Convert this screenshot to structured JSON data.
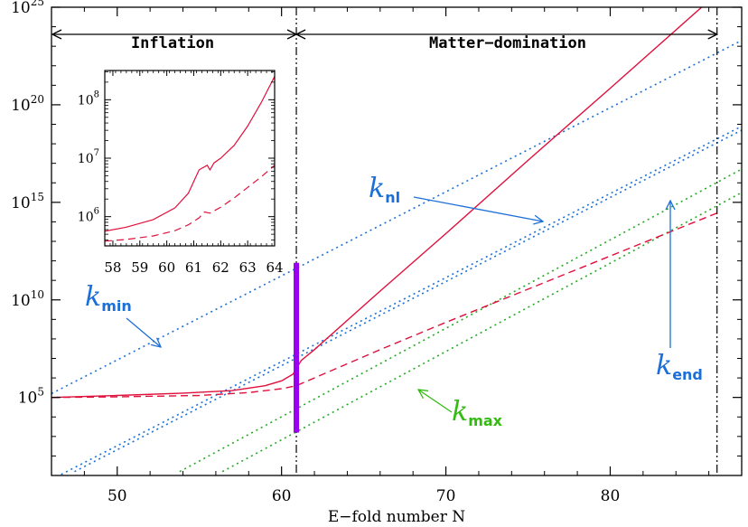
{
  "chart_data": {
    "type": "line",
    "title": "",
    "xlabel": "E−fold number N",
    "ylabel": "",
    "xlim": [
      46,
      88
    ],
    "ylim_log10": [
      1.0,
      25.0
    ],
    "y_scale": "log",
    "x_ticks": [
      50,
      60,
      70,
      80
    ],
    "x_tick_labels": [
      "50",
      "60",
      "70",
      "80"
    ],
    "y_ticks_log10": [
      5,
      10,
      15,
      20,
      25
    ],
    "y_tick_labels": [
      {
        "base": "10",
        "exp": "5"
      },
      {
        "base": "10",
        "exp": "10"
      },
      {
        "base": "10",
        "exp": "15"
      },
      {
        "base": "10",
        "exp": "20"
      },
      {
        "base": "10",
        "exp": "25"
      }
    ],
    "end_of_inflation_N": 60.9,
    "final_N": 86.5,
    "phases": [
      {
        "label": "Inflation",
        "from": 46,
        "to": 60.9
      },
      {
        "label": "Matter−domination",
        "from": 60.9,
        "to": 86.5
      }
    ],
    "vertical_bar": {
      "x": 60.9,
      "log10_from": 3.2,
      "log10_to": 11.9,
      "color": "#9900ee"
    },
    "series": [
      {
        "style": "solid",
        "color": "#e0103c",
        "points": [
          [
            46,
            5.0
          ],
          [
            50,
            5.1
          ],
          [
            54,
            5.22
          ],
          [
            57,
            5.35
          ],
          [
            59,
            5.6
          ],
          [
            60,
            5.85
          ],
          [
            60.7,
            6.2
          ],
          [
            61.2,
            6.9
          ],
          [
            62,
            7.45
          ],
          [
            64,
            8.95
          ],
          [
            66,
            10.45
          ],
          [
            70,
            13.4
          ],
          [
            75,
            17.15
          ],
          [
            80,
            20.85
          ],
          [
            86.5,
            25.7
          ]
        ]
      },
      {
        "style": "dashed",
        "color": "#e0103c",
        "points": [
          [
            46,
            5.0
          ],
          [
            50,
            5.03
          ],
          [
            55,
            5.1
          ],
          [
            58,
            5.25
          ],
          [
            60,
            5.45
          ],
          [
            60.9,
            5.6
          ],
          [
            62,
            6.0
          ],
          [
            66,
            7.45
          ],
          [
            70,
            8.85
          ],
          [
            75,
            10.55
          ],
          [
            80,
            12.25
          ],
          [
            86.5,
            14.45
          ]
        ]
      }
    ],
    "reference_lines": [
      {
        "key": "k_min",
        "style": "dotted",
        "color": "#1a6fd8",
        "slope_per_N": 0.43,
        "points": [
          [
            46,
            5.2
          ],
          [
            88,
            23.3
          ]
        ]
      },
      {
        "key": "k_nl",
        "style": "dotted",
        "color": "#1a6fd8",
        "slope_per_N": 0.43,
        "points": [
          [
            46,
            0.8
          ],
          [
            88,
            18.9
          ]
        ]
      },
      {
        "key": "k_end",
        "style": "dotted",
        "color": "#1a6fd8",
        "slope_per_N": 0.43,
        "points": [
          [
            47.4,
            1.2
          ],
          [
            88,
            18.7
          ]
        ]
      },
      {
        "key": "k_max_1",
        "style": "dotted",
        "color": "#22aa22",
        "points": [
          [
            53.8,
            1.2
          ],
          [
            88,
            16.7
          ]
        ]
      },
      {
        "key": "k_max_2",
        "style": "dotted",
        "color": "#22aa22",
        "points": [
          [
            56.4,
            1.2
          ],
          [
            88,
            15.5
          ]
        ]
      }
    ],
    "annotations": [
      {
        "key": "k_min",
        "letter": "k",
        "sub": "min",
        "color": "#1a6fd8"
      },
      {
        "key": "k_nl",
        "letter": "k",
        "sub": "nl",
        "color": "#1a6fd8"
      },
      {
        "key": "k_end",
        "letter": "k",
        "sub": "end",
        "color": "#1a6fd8"
      },
      {
        "key": "k_max",
        "letter": "k",
        "sub": "max",
        "color": "#33bb11"
      }
    ],
    "inset": {
      "x_ticks": [
        58,
        59,
        60,
        61,
        62,
        63,
        64
      ],
      "x_tick_labels": [
        "58",
        "59",
        "60",
        "61",
        "62",
        "63",
        "64"
      ],
      "y_ticks_log10": [
        6,
        7,
        8
      ],
      "y_tick_labels": [
        {
          "base": "10",
          "exp": "6"
        },
        {
          "base": "10",
          "exp": "7"
        },
        {
          "base": "10",
          "exp": "8"
        }
      ],
      "xlim": [
        57.7,
        64
      ],
      "ylim_log10": [
        5.5,
        8.5
      ],
      "series": [
        {
          "style": "solid",
          "color": "#e0103c",
          "points": [
            [
              57.7,
              5.75
            ],
            [
              58.5,
              5.82
            ],
            [
              59.5,
              5.95
            ],
            [
              60.3,
              6.15
            ],
            [
              60.8,
              6.4
            ],
            [
              61.2,
              6.8
            ],
            [
              61.5,
              6.88
            ],
            [
              61.6,
              6.8
            ],
            [
              61.75,
              6.92
            ],
            [
              62,
              7.0
            ],
            [
              62.5,
              7.22
            ],
            [
              63,
              7.55
            ],
            [
              63.5,
              7.95
            ],
            [
              64,
              8.4
            ]
          ]
        },
        {
          "style": "dashed",
          "color": "#e0103c",
          "points": [
            [
              57.7,
              5.58
            ],
            [
              58.5,
              5.61
            ],
            [
              59.5,
              5.67
            ],
            [
              60.3,
              5.76
            ],
            [
              60.8,
              5.86
            ],
            [
              61.2,
              5.98
            ],
            [
              61.4,
              6.08
            ],
            [
              61.6,
              6.06
            ],
            [
              62,
              6.16
            ],
            [
              62.5,
              6.32
            ],
            [
              63,
              6.5
            ],
            [
              63.5,
              6.68
            ],
            [
              64,
              6.88
            ]
          ]
        }
      ]
    }
  }
}
